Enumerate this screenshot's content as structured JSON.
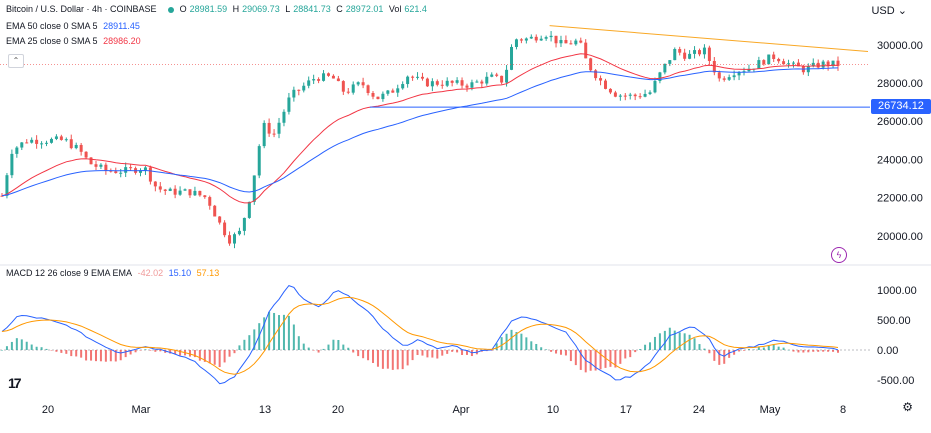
{
  "header": {
    "symbol": "Bitcoin / U.S. Dollar · 4h · COINBASE",
    "o_label": "O",
    "o": "28981.59",
    "h_label": "H",
    "h": "29069.73",
    "l_label": "L",
    "l": "28841.73",
    "c_label": "C",
    "c": "28972.01",
    "vol_label": "Vol",
    "vol": "621.4"
  },
  "ema50": {
    "label": "EMA 50 close 0 SMA 5",
    "value": "28911.45",
    "color": "#2962ff"
  },
  "ema25": {
    "label": "EMA 25 close 0 SMA 5",
    "value": "28986.20",
    "color": "#f23645"
  },
  "macd": {
    "label": "MACD 12 26 close 9 EMA EMA",
    "hist": "-42.02",
    "macd": "15.10",
    "signal": "57.13",
    "hist_color": "#ef9a9a",
    "macd_color": "#2962ff",
    "signal_color": "#ff9800"
  },
  "currency": "USD",
  "support_label": "26734.12",
  "collapse_icon": "chevron-up-icon",
  "lightning_icon": "lightning-icon",
  "logo_text": "17",
  "settings_icon": "gear-icon",
  "chart_data": {
    "type": "candlestick",
    "x_ticks": [
      "20",
      "Mar",
      "13",
      "20",
      "Apr",
      "10",
      "17",
      "24",
      "May",
      "8"
    ],
    "price_ticks": [
      "30000.00",
      "28000.00",
      "26000.00",
      "24000.00",
      "22000.00",
      "20000.00"
    ],
    "price_tick_values": [
      30000,
      28000,
      26000,
      24000,
      22000,
      20000
    ],
    "price_range": [
      19000,
      31400
    ],
    "macd_ticks": [
      "1000.00",
      "500.00",
      "0.00",
      "-500.00"
    ],
    "macd_tick_values": [
      1000,
      500,
      0,
      -500
    ],
    "macd_range": [
      -700,
      1250
    ],
    "support_level": 26734.12,
    "current_price": 28972.01,
    "trendline": [
      [
        0.655,
        31000
      ],
      [
        1.0,
        29650
      ]
    ],
    "up_color": "#26a69a",
    "down_color": "#ef5350",
    "trendline_color": "#f9a825",
    "support_color": "#2962ff",
    "price_anchors": [
      [
        0.0,
        22100
      ],
      [
        0.012,
        24500
      ],
      [
        0.03,
        25000
      ],
      [
        0.055,
        25000
      ],
      [
        0.075,
        25000
      ],
      [
        0.092,
        24500
      ],
      [
        0.105,
        23800
      ],
      [
        0.125,
        23400
      ],
      [
        0.15,
        23400
      ],
      [
        0.17,
        23600
      ],
      [
        0.185,
        22500
      ],
      [
        0.2,
        22300
      ],
      [
        0.225,
        22300
      ],
      [
        0.245,
        22000
      ],
      [
        0.262,
        20500
      ],
      [
        0.272,
        19800
      ],
      [
        0.285,
        20200
      ],
      [
        0.298,
        22300
      ],
      [
        0.312,
        25800
      ],
      [
        0.325,
        25300
      ],
      [
        0.345,
        27300
      ],
      [
        0.36,
        27800
      ],
      [
        0.375,
        28300
      ],
      [
        0.395,
        28300
      ],
      [
        0.41,
        27500
      ],
      [
        0.43,
        28000
      ],
      [
        0.448,
        27200
      ],
      [
        0.465,
        27500
      ],
      [
        0.485,
        28400
      ],
      [
        0.505,
        28000
      ],
      [
        0.53,
        28000
      ],
      [
        0.56,
        27900
      ],
      [
        0.585,
        28300
      ],
      [
        0.6,
        28100
      ],
      [
        0.612,
        30300
      ],
      [
        0.63,
        30300
      ],
      [
        0.65,
        30600
      ],
      [
        0.67,
        30000
      ],
      [
        0.69,
        30200
      ],
      [
        0.7,
        29000
      ],
      [
        0.718,
        28000
      ],
      [
        0.735,
        27400
      ],
      [
        0.755,
        27300
      ],
      [
        0.775,
        27500
      ],
      [
        0.79,
        28700
      ],
      [
        0.805,
        29700
      ],
      [
        0.82,
        29400
      ],
      [
        0.84,
        29700
      ],
      [
        0.858,
        28200
      ],
      [
        0.875,
        28600
      ],
      [
        0.895,
        28800
      ],
      [
        0.912,
        29200
      ],
      [
        0.925,
        29400
      ],
      [
        0.945,
        28900
      ],
      [
        0.96,
        28700
      ],
      [
        0.98,
        29000
      ],
      [
        1.0,
        28970
      ]
    ],
    "macd_anchors": [
      [
        0.0,
        300
      ],
      [
        0.02,
        580
      ],
      [
        0.05,
        520
      ],
      [
        0.08,
        400
      ],
      [
        0.11,
        150
      ],
      [
        0.14,
        -50
      ],
      [
        0.17,
        60
      ],
      [
        0.2,
        -20
      ],
      [
        0.23,
        -180
      ],
      [
        0.262,
        -580
      ],
      [
        0.28,
        -420
      ],
      [
        0.3,
        0
      ],
      [
        0.32,
        650
      ],
      [
        0.345,
        1100
      ],
      [
        0.36,
        850
      ],
      [
        0.38,
        700
      ],
      [
        0.4,
        1000
      ],
      [
        0.42,
        850
      ],
      [
        0.44,
        600
      ],
      [
        0.46,
        300
      ],
      [
        0.48,
        60
      ],
      [
        0.5,
        180
      ],
      [
        0.52,
        10
      ],
      [
        0.54,
        80
      ],
      [
        0.56,
        -40
      ],
      [
        0.585,
        0
      ],
      [
        0.61,
        500
      ],
      [
        0.625,
        550
      ],
      [
        0.65,
        450
      ],
      [
        0.675,
        300
      ],
      [
        0.7,
        -200
      ],
      [
        0.735,
        -500
      ],
      [
        0.755,
        -430
      ],
      [
        0.775,
        -200
      ],
      [
        0.8,
        250
      ],
      [
        0.825,
        400
      ],
      [
        0.845,
        200
      ],
      [
        0.86,
        -120
      ],
      [
        0.88,
        0
      ],
      [
        0.9,
        60
      ],
      [
        0.925,
        170
      ],
      [
        0.95,
        80
      ],
      [
        0.975,
        40
      ],
      [
        1.0,
        15
      ]
    ]
  }
}
